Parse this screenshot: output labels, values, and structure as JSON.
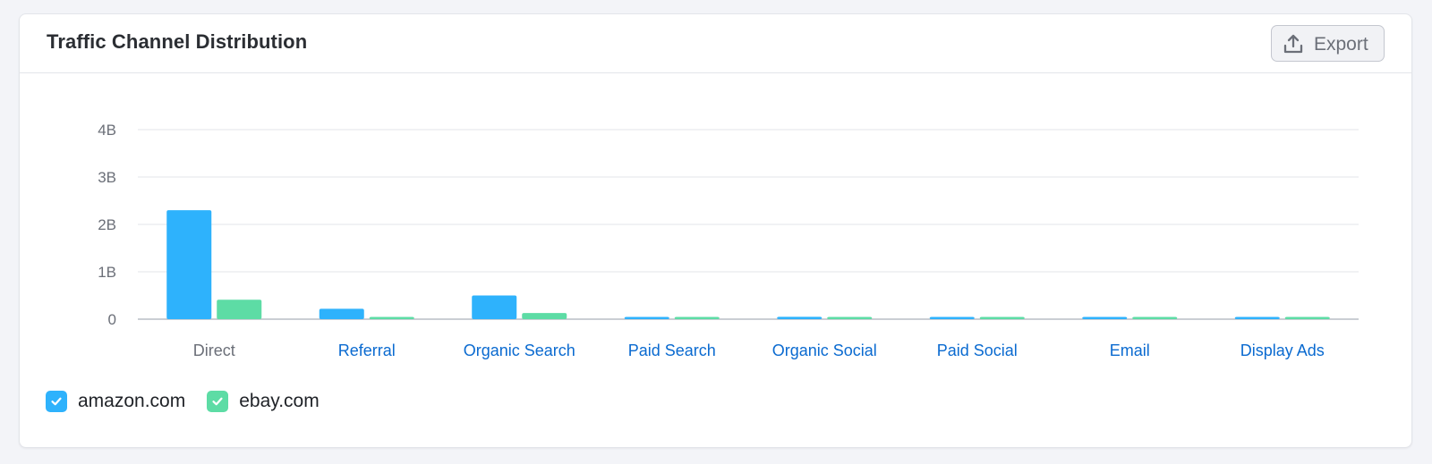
{
  "card": {
    "title": "Traffic Channel Distribution",
    "export_label": "Export"
  },
  "colors": {
    "series_1": "#2eb2fc",
    "series_2": "#5ddca5",
    "grid": "#e3e5ea",
    "axis": "#b9bdc6",
    "category_link": "#0a6ad0",
    "category_plain": "#6b6f78"
  },
  "icons": {
    "export": "upload-icon",
    "legend_check": "checkmark-icon"
  },
  "chart_data": {
    "type": "bar",
    "title": "Traffic Channel Distribution",
    "xlabel": "",
    "ylabel": "",
    "ylim": [
      0,
      4000000000
    ],
    "yticks": [
      0,
      1000000000,
      2000000000,
      3000000000,
      4000000000
    ],
    "ytick_labels": [
      "0",
      "1B",
      "2B",
      "3B",
      "4B"
    ],
    "grid": true,
    "legend_position": "bottom-left",
    "categories": [
      "Direct",
      "Referral",
      "Organic Search",
      "Paid Search",
      "Organic Social",
      "Paid Social",
      "Email",
      "Display Ads"
    ],
    "category_links": [
      false,
      true,
      true,
      true,
      true,
      true,
      true,
      true
    ],
    "series": [
      {
        "name": "amazon.com",
        "values": [
          2300000000,
          220000000,
          500000000,
          30000000,
          50000000,
          35000000,
          30000000,
          30000000
        ]
      },
      {
        "name": "ebay.com",
        "values": [
          410000000,
          35000000,
          130000000,
          25000000,
          25000000,
          20000000,
          25000000,
          25000000
        ]
      }
    ]
  }
}
